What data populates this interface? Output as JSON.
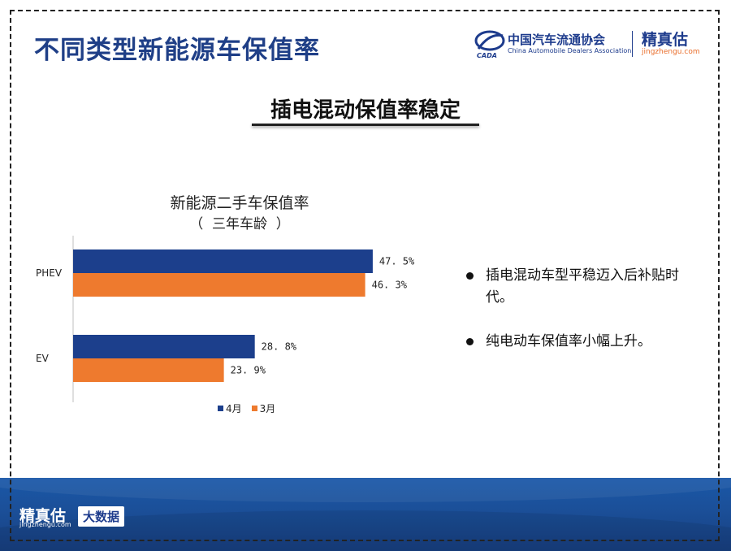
{
  "header": {
    "page_title": "不同类型新能源车保值率",
    "cada_name_cn": "中国汽车流通协会",
    "cada_name_en": "China Automobile Dealers Association",
    "cada_emblem_text": "CADA",
    "jzg_name": "精真估",
    "jzg_url": "jingzhengu.com"
  },
  "subtitle": "插电混动保值率稳定",
  "chart_data": {
    "type": "bar",
    "orientation": "horizontal",
    "title": "新能源二手车保值率",
    "subtitle": "（  三年车龄  ）",
    "categories": [
      "PHEV",
      "EV"
    ],
    "series": [
      {
        "name": "4月",
        "values": [
          47.5,
          28.8
        ],
        "labels": [
          "47. 5%",
          "28. 8%"
        ],
        "color": "#1c3f8c"
      },
      {
        "name": "3月",
        "values": [
          46.3,
          23.9
        ],
        "labels": [
          "46. 3%",
          "23. 9%"
        ],
        "color": "#ee7a2e"
      }
    ],
    "xlim": [
      0,
      60
    ],
    "grid": false,
    "legend_position": "bottom"
  },
  "bullets": [
    "插电混动车型平稳迈入后补贴时代。",
    "纯电动车保值率小幅上升。"
  ],
  "footer": {
    "logo_cn": "精真估",
    "logo_url": "jingzhengu.com",
    "badge": "大数据"
  }
}
